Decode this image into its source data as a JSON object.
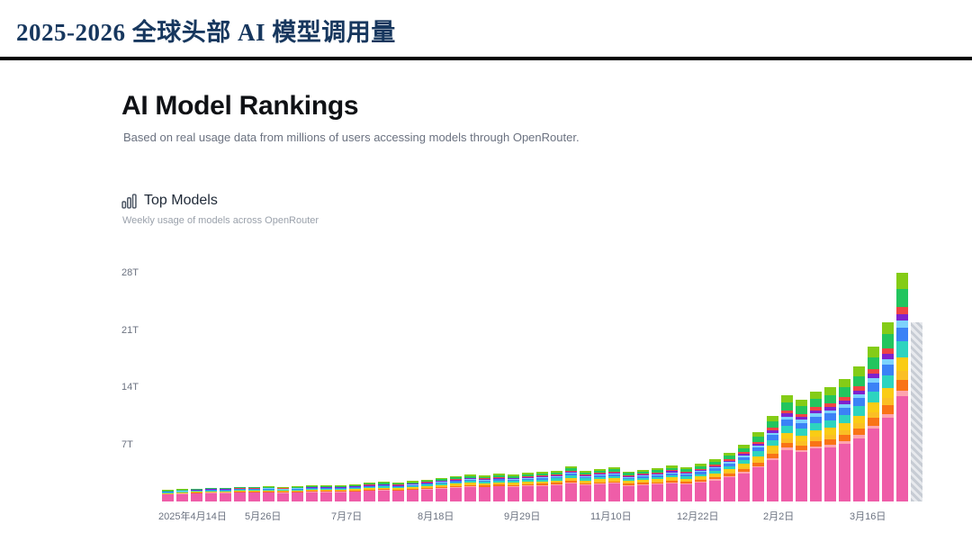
{
  "header": {
    "title": "2025-2026 全球头部 AI 模型调用量"
  },
  "rankings": {
    "title": "AI Model Rankings",
    "subtitle": "Based on real usage data from millions of users accessing models through OpenRouter.",
    "section_title": "Top Models",
    "section_subtitle": "Weekly usage of models across OpenRouter"
  },
  "chart_data": {
    "type": "bar",
    "stacked": true,
    "title": "Top Models",
    "xlabel": "",
    "ylabel": "",
    "unit": "T",
    "ylim": [
      0,
      30
    ],
    "grid": false,
    "legend": "none",
    "y_ticks": [
      {
        "value": 7,
        "label": "7T"
      },
      {
        "value": 14,
        "label": "14T"
      },
      {
        "value": 21,
        "label": "21T"
      },
      {
        "value": 28,
        "label": "28T"
      }
    ],
    "x_ticks": [
      {
        "index": 0,
        "label": "2025年4月14日"
      },
      {
        "index": 6,
        "label": "5月26日"
      },
      {
        "index": 12,
        "label": "7月7日"
      },
      {
        "index": 18,
        "label": "8月18日"
      },
      {
        "index": 24,
        "label": "9月29日"
      },
      {
        "index": 30,
        "label": "11月10日"
      },
      {
        "index": 36,
        "label": "12月22日"
      },
      {
        "index": 42,
        "label": "2月2日"
      },
      {
        "index": 48,
        "label": "3月16日"
      }
    ],
    "totals": [
      1.4,
      1.5,
      1.6,
      1.7,
      1.7,
      1.8,
      1.8,
      1.9,
      1.8,
      1.9,
      2.0,
      2.0,
      2.0,
      2.1,
      2.3,
      2.4,
      2.3,
      2.5,
      2.7,
      2.9,
      3.1,
      3.3,
      3.2,
      3.4,
      3.3,
      3.5,
      3.6,
      3.8,
      4.3,
      3.8,
      4.0,
      4.2,
      3.7,
      3.9,
      4.1,
      4.4,
      4.2,
      4.6,
      5.2,
      6.0,
      7.0,
      8.5,
      10.5,
      13.0,
      12.5,
      13.5,
      14.0,
      15.0,
      16.5,
      19.0,
      22.0,
      28.0,
      22.0
    ],
    "hatched_index": 52,
    "hatch_color": "#cbd5e1",
    "segment_colors": [
      "#ef5da8",
      "#fda4af",
      "#f97316",
      "#fbbf24",
      "#facc15",
      "#2dd4bf",
      "#3b82f6",
      "#7dd3fc",
      "#7e22ce",
      "#ef4444",
      "#22c55e",
      "#84cc16"
    ],
    "profile_early": [
      0.6,
      0.03,
      0.04,
      0.03,
      0.04,
      0.06,
      0.04,
      0.02,
      0.03,
      0.02,
      0.05,
      0.04
    ],
    "profile_late": [
      0.46,
      0.02,
      0.05,
      0.04,
      0.06,
      0.07,
      0.06,
      0.03,
      0.03,
      0.03,
      0.08,
      0.07
    ]
  }
}
